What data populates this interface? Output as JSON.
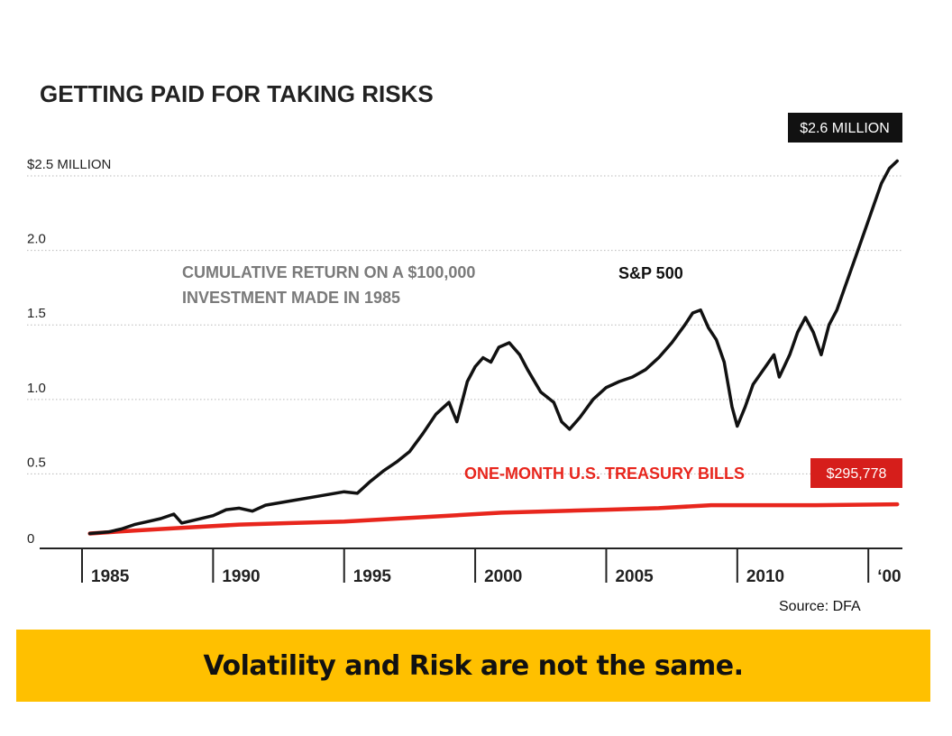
{
  "chart_data": {
    "type": "line",
    "title": "GETTING PAID FOR TAKING RISKS",
    "subtitle_lines": [
      "CUMULATIVE RETURN ON A $100,000",
      "INVESTMENT MADE IN 1985"
    ],
    "ylim": [
      0,
      2.7
    ],
    "yticks": [
      {
        "value": 0,
        "label": "0"
      },
      {
        "value": 0.5,
        "label": "0.5"
      },
      {
        "value": 1.0,
        "label": "1.0"
      },
      {
        "value": 1.5,
        "label": "1.5"
      },
      {
        "value": 2.0,
        "label": "2.0"
      },
      {
        "value": 2.5,
        "label": "$2.5 MILLION"
      }
    ],
    "xlim": [
      1984,
      2015.3
    ],
    "xticks": [
      {
        "value": 1984,
        "label": "1985"
      },
      {
        "value": 1989,
        "label": "1990"
      },
      {
        "value": 1994,
        "label": "1995"
      },
      {
        "value": 1999,
        "label": "2000"
      },
      {
        "value": 2004,
        "label": "2005"
      },
      {
        "value": 2009,
        "label": "2010"
      },
      {
        "value": 2014,
        "label": "‘00"
      }
    ],
    "grid": true,
    "series": [
      {
        "name": "S&P 500",
        "color": "#111111",
        "end_label": "$2.6 MILLION",
        "points": [
          [
            1984.3,
            0.1
          ],
          [
            1985.0,
            0.11
          ],
          [
            1985.5,
            0.13
          ],
          [
            1986.0,
            0.16
          ],
          [
            1986.5,
            0.18
          ],
          [
            1987.0,
            0.2
          ],
          [
            1987.5,
            0.23
          ],
          [
            1987.8,
            0.17
          ],
          [
            1988.3,
            0.19
          ],
          [
            1989.0,
            0.22
          ],
          [
            1989.5,
            0.26
          ],
          [
            1990.0,
            0.27
          ],
          [
            1990.5,
            0.25
          ],
          [
            1991.0,
            0.29
          ],
          [
            1992.0,
            0.32
          ],
          [
            1993.0,
            0.35
          ],
          [
            1994.0,
            0.38
          ],
          [
            1994.5,
            0.37
          ],
          [
            1995.0,
            0.45
          ],
          [
            1995.5,
            0.52
          ],
          [
            1996.0,
            0.58
          ],
          [
            1996.5,
            0.65
          ],
          [
            1997.0,
            0.77
          ],
          [
            1997.5,
            0.9
          ],
          [
            1998.0,
            0.98
          ],
          [
            1998.3,
            0.85
          ],
          [
            1998.7,
            1.12
          ],
          [
            1999.0,
            1.22
          ],
          [
            1999.3,
            1.28
          ],
          [
            1999.6,
            1.25
          ],
          [
            1999.9,
            1.35
          ],
          [
            2000.3,
            1.38
          ],
          [
            2000.7,
            1.3
          ],
          [
            2001.0,
            1.2
          ],
          [
            2001.5,
            1.05
          ],
          [
            2002.0,
            0.98
          ],
          [
            2002.3,
            0.85
          ],
          [
            2002.6,
            0.8
          ],
          [
            2003.0,
            0.88
          ],
          [
            2003.5,
            1.0
          ],
          [
            2004.0,
            1.08
          ],
          [
            2004.5,
            1.12
          ],
          [
            2005.0,
            1.15
          ],
          [
            2005.5,
            1.2
          ],
          [
            2006.0,
            1.28
          ],
          [
            2006.5,
            1.38
          ],
          [
            2007.0,
            1.5
          ],
          [
            2007.3,
            1.58
          ],
          [
            2007.6,
            1.6
          ],
          [
            2007.9,
            1.48
          ],
          [
            2008.2,
            1.4
          ],
          [
            2008.5,
            1.25
          ],
          [
            2008.8,
            0.95
          ],
          [
            2009.0,
            0.82
          ],
          [
            2009.3,
            0.95
          ],
          [
            2009.6,
            1.1
          ],
          [
            2010.0,
            1.2
          ],
          [
            2010.4,
            1.3
          ],
          [
            2010.6,
            1.15
          ],
          [
            2011.0,
            1.3
          ],
          [
            2011.3,
            1.45
          ],
          [
            2011.6,
            1.55
          ],
          [
            2011.9,
            1.45
          ],
          [
            2012.2,
            1.3
          ],
          [
            2012.5,
            1.5
          ],
          [
            2012.8,
            1.6
          ],
          [
            2013.1,
            1.75
          ],
          [
            2013.5,
            1.95
          ],
          [
            2013.9,
            2.15
          ],
          [
            2014.2,
            2.3
          ],
          [
            2014.5,
            2.45
          ],
          [
            2014.8,
            2.55
          ],
          [
            2015.1,
            2.6
          ]
        ]
      },
      {
        "name": "ONE-MONTH U.S. TREASURY BILLS",
        "color": "#e8261d",
        "end_label": "$295,778",
        "points": [
          [
            1984.3,
            0.1
          ],
          [
            1986.0,
            0.12
          ],
          [
            1988.0,
            0.14
          ],
          [
            1990.0,
            0.16
          ],
          [
            1992.0,
            0.17
          ],
          [
            1994.0,
            0.18
          ],
          [
            1996.0,
            0.2
          ],
          [
            1998.0,
            0.22
          ],
          [
            2000.0,
            0.24
          ],
          [
            2002.0,
            0.25
          ],
          [
            2004.0,
            0.26
          ],
          [
            2006.0,
            0.27
          ],
          [
            2008.0,
            0.29
          ],
          [
            2010.0,
            0.29
          ],
          [
            2012.0,
            0.29
          ],
          [
            2015.1,
            0.296
          ]
        ]
      }
    ],
    "source": "Source: DFA"
  },
  "banner": {
    "text": "Volatility and Risk are not the same."
  }
}
